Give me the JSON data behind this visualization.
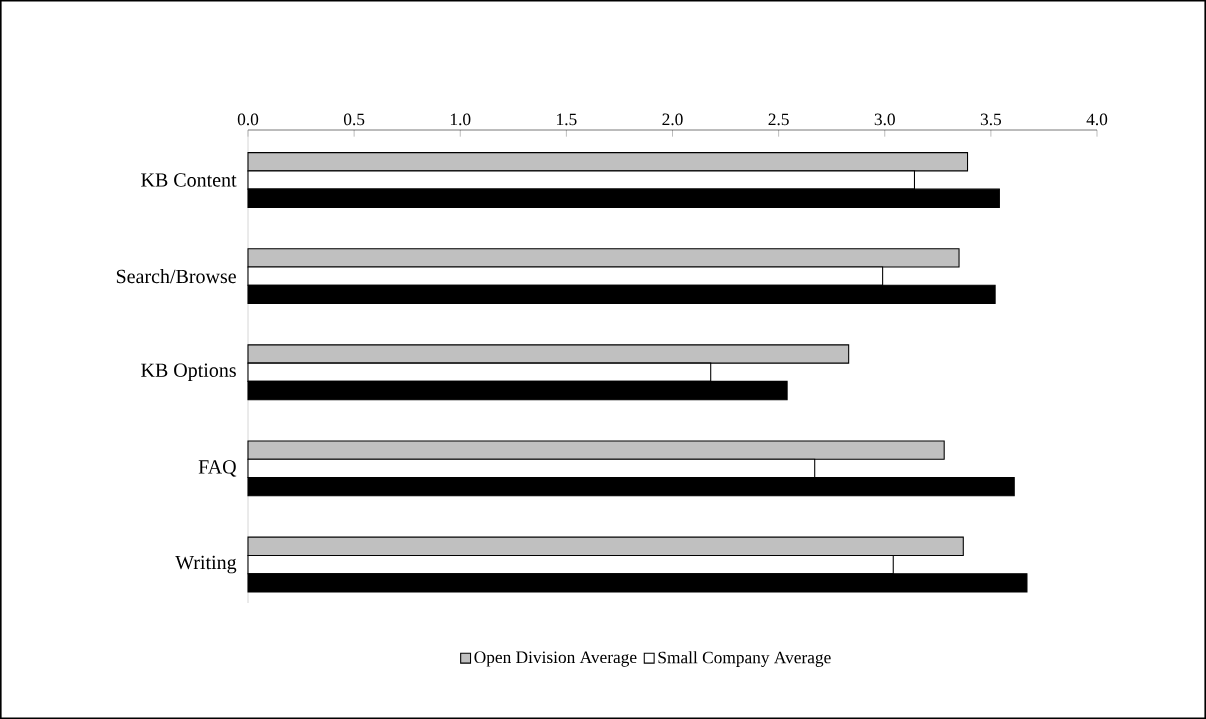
{
  "chart_data": {
    "type": "bar",
    "orientation": "horizontal",
    "legend": "bottom",
    "categories": [
      "KB Content",
      "Search/Browse",
      "KB Options",
      "FAQ",
      "Writing"
    ],
    "series": [
      {
        "name": "Open Division Average",
        "color": "#c0c0c0",
        "values": [
          3.39,
          3.35,
          2.83,
          3.28,
          3.37
        ]
      },
      {
        "name": "Small Company Average",
        "color": "#ffffff",
        "values": [
          3.14,
          2.99,
          2.18,
          2.67,
          3.04
        ]
      },
      {
        "color": "#000000",
        "values": [
          3.54,
          3.52,
          2.54,
          3.61,
          3.67
        ]
      }
    ],
    "xlim": [
      0,
      4
    ],
    "xticks": [
      {
        "value": 0,
        "label": "0.0"
      },
      {
        "value": 0.5,
        "label": "0.5"
      },
      {
        "value": 1,
        "label": "1.0"
      },
      {
        "value": 1.5,
        "label": "1.5"
      },
      {
        "value": 2,
        "label": "2.0"
      },
      {
        "value": 2.5,
        "label": "2.5"
      },
      {
        "value": 3,
        "label": "3.0"
      },
      {
        "value": 3.5,
        "label": "3.5"
      },
      {
        "value": 4,
        "label": "4.0"
      }
    ]
  }
}
